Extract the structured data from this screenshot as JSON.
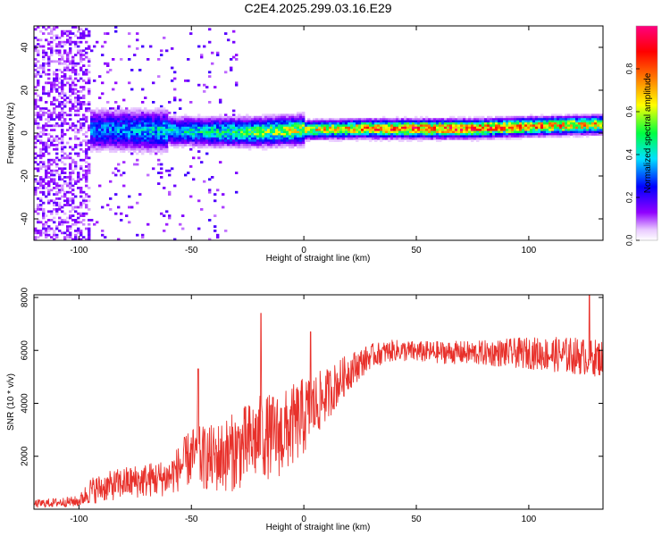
{
  "title": "C2E4.2025.299.03.16.E29",
  "chart_data": [
    {
      "type": "heatmap",
      "name": "spectrogram",
      "xlabel": "Height of straight line (km)",
      "ylabel": "Frequency (Hz)",
      "xlim": [
        -120,
        133
      ],
      "ylim": [
        -50,
        50
      ],
      "xticks": [
        -100,
        -50,
        0,
        50,
        100
      ],
      "yticks": [
        -40,
        -20,
        0,
        20,
        40
      ],
      "colorbar": {
        "label": "Normalized spectral amplitude",
        "range": [
          0,
          1
        ],
        "ticks": [
          "0.0",
          "0.2",
          "0.4",
          "0.6",
          "0.8"
        ],
        "colors": [
          "#ffffff",
          "#9000ff",
          "#0000ff",
          "#00e0ff",
          "#00ff40",
          "#ffff00",
          "#ff8000",
          "#ff0000",
          "#ff0080"
        ]
      },
      "ridge": {
        "x": [
          -95,
          -60,
          -40,
          -20,
          0,
          25,
          50,
          75,
          100,
          133
        ],
        "center_hz": [
          1.5,
          1.0,
          0.5,
          0.5,
          1.5,
          2.0,
          2.0,
          2.0,
          3.0,
          4.0
        ],
        "peak_amplitude": [
          0.35,
          0.45,
          0.5,
          0.6,
          0.7,
          0.85,
          0.95,
          0.95,
          0.85,
          0.8
        ]
      }
    },
    {
      "type": "line",
      "name": "snr",
      "xlabel": "Height of straight line (km)",
      "ylabel": "SNR (10 * v/v)",
      "xlim": [
        -120,
        133
      ],
      "ylim": [
        0,
        8100
      ],
      "xticks": [
        -100,
        -50,
        0,
        50,
        100
      ],
      "yticks": [
        2000,
        4000,
        6000,
        8000
      ],
      "color": "#e8312b",
      "envelope": {
        "x": [
          -120,
          -100,
          -95,
          -80,
          -60,
          -50,
          -40,
          -30,
          -20,
          -10,
          0,
          10,
          20,
          30,
          40,
          50,
          75,
          100,
          120,
          133
        ],
        "mean": [
          200,
          300,
          700,
          1000,
          1200,
          2000,
          1900,
          2200,
          2700,
          2800,
          3500,
          4300,
          5200,
          5800,
          6000,
          5950,
          5900,
          5900,
          5800,
          5700
        ],
        "spread": [
          150,
          200,
          500,
          600,
          700,
          1100,
          1300,
          1500,
          1600,
          1600,
          1500,
          1000,
          700,
          450,
          400,
          400,
          450,
          600,
          700,
          700
        ]
      },
      "spikes": [
        {
          "x": -47,
          "y": 5300
        },
        {
          "x": -19,
          "y": 7400
        },
        {
          "x": 3,
          "y": 6700
        },
        {
          "x": 127,
          "y": 8100
        }
      ]
    }
  ]
}
